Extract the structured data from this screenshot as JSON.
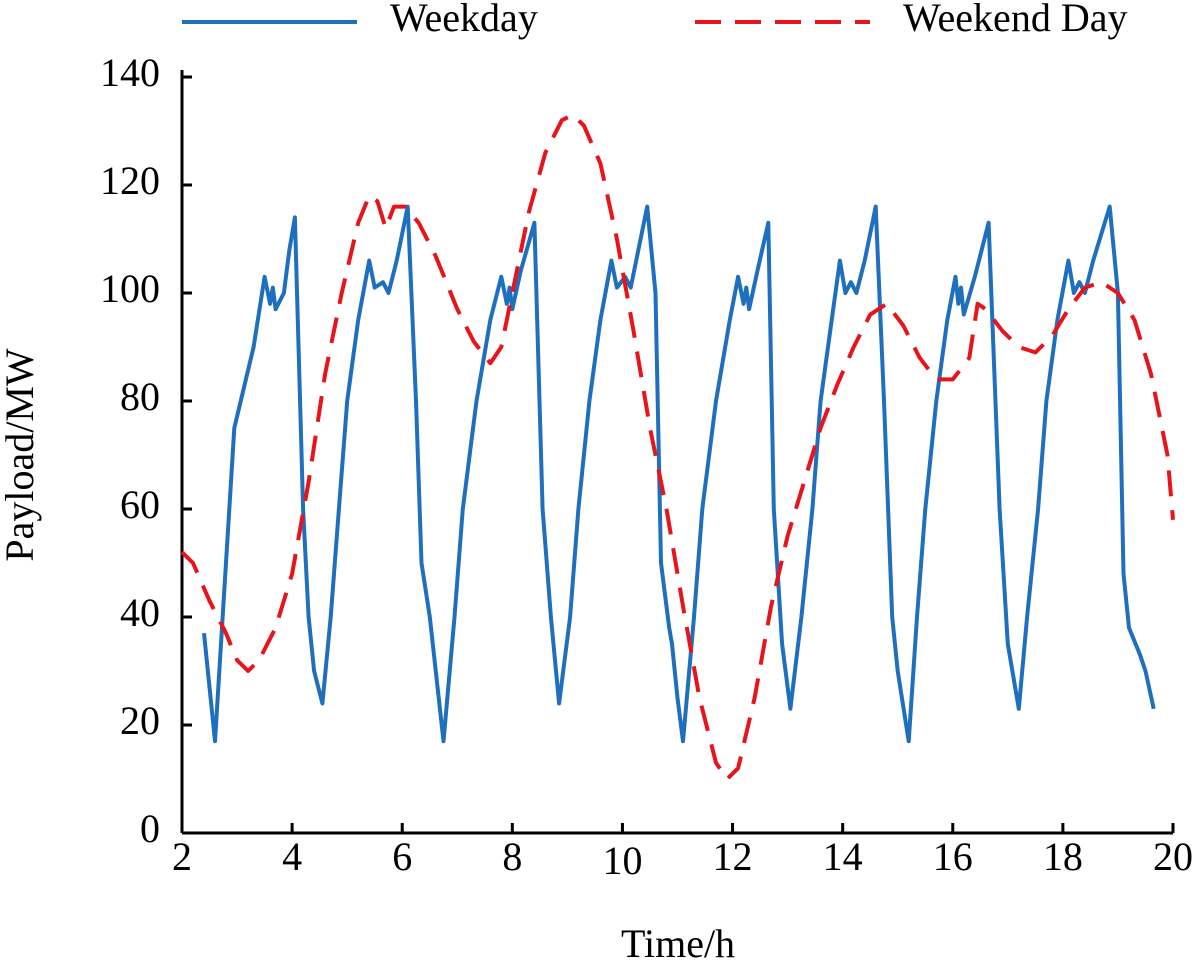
{
  "chart_data": {
    "type": "line",
    "xlabel": "Time/h",
    "ylabel": "Payload/MW",
    "xlim": [
      2,
      20
    ],
    "xticks": [
      2,
      4,
      6,
      8,
      10,
      12,
      14,
      16,
      18,
      20
    ],
    "ylim": [
      0,
      140
    ],
    "yticks": [
      0,
      20,
      40,
      60,
      80,
      100,
      120,
      140
    ],
    "legend": "top",
    "series": [
      {
        "name": "Weekday",
        "color": "#1f6fbf",
        "style": "solid",
        "x": [
          2.4,
          2.6,
          2.95,
          3.3,
          3.5,
          3.6,
          3.65,
          3.7,
          3.85,
          3.95,
          4.05,
          4.2,
          4.3,
          4.4,
          4.55,
          4.7,
          4.85,
          5.0,
          5.2,
          5.4,
          5.5,
          5.65,
          5.75,
          5.9,
          6.1,
          6.25,
          6.35,
          6.5,
          6.75,
          6.95,
          7.1,
          7.35,
          7.6,
          7.8,
          7.9,
          7.95,
          8.0,
          8.15,
          8.4,
          8.55,
          8.7,
          8.85,
          9.05,
          9.2,
          9.4,
          9.6,
          9.8,
          9.9,
          10.05,
          10.15,
          10.25,
          10.45,
          10.6,
          10.7,
          10.85,
          10.9,
          11.0,
          11.1,
          11.3,
          11.45,
          11.7,
          11.95,
          12.1,
          12.2,
          12.25,
          12.3,
          12.45,
          12.65,
          12.75,
          12.9,
          13.05,
          13.25,
          13.45,
          13.6,
          13.8,
          13.95,
          14.05,
          14.15,
          14.25,
          14.4,
          14.6,
          14.75,
          14.9,
          15.0,
          15.2,
          15.35,
          15.5,
          15.7,
          15.9,
          16.05,
          16.1,
          16.15,
          16.2,
          16.4,
          16.65,
          16.85,
          17.0,
          17.2,
          17.35,
          17.55,
          17.7,
          17.9,
          18.1,
          18.2,
          18.3,
          18.4,
          18.55,
          18.85,
          19.0,
          19.1,
          19.2,
          19.4,
          19.5,
          19.65
        ],
        "values": [
          37,
          17,
          75,
          90,
          103,
          98,
          101,
          97,
          100,
          108,
          114,
          60,
          40,
          30,
          24,
          40,
          60,
          80,
          95,
          106,
          101,
          102,
          100,
          106,
          116,
          80,
          50,
          40,
          17,
          40,
          60,
          80,
          95,
          103,
          98,
          101,
          97,
          104,
          113,
          60,
          40,
          24,
          40,
          60,
          80,
          95,
          106,
          101,
          103,
          101,
          106,
          116,
          100,
          50,
          38,
          35,
          25,
          17,
          40,
          60,
          80,
          95,
          103,
          98,
          101,
          97,
          104,
          113,
          60,
          35,
          23,
          40,
          60,
          80,
          95,
          106,
          100,
          102,
          100,
          106,
          116,
          80,
          40,
          30,
          17,
          40,
          60,
          80,
          95,
          103,
          98,
          101,
          96,
          103,
          113,
          60,
          35,
          23,
          40,
          60,
          80,
          95,
          106,
          100,
          102,
          100,
          106,
          116,
          100,
          48,
          38,
          33,
          30,
          23
        ]
      },
      {
        "name": "Weekend Day",
        "color": "#e8141c",
        "style": "dashed",
        "x": [
          2.0,
          2.2,
          2.5,
          2.8,
          3.0,
          3.2,
          3.4,
          3.7,
          4.0,
          4.3,
          4.6,
          4.9,
          5.2,
          5.4,
          5.55,
          5.7,
          5.85,
          6.05,
          6.3,
          6.6,
          7.0,
          7.3,
          7.6,
          7.8,
          8.0,
          8.3,
          8.6,
          8.9,
          9.1,
          9.3,
          9.6,
          9.9,
          10.2,
          10.5,
          10.8,
          11.1,
          11.4,
          11.7,
          11.9,
          12.1,
          12.4,
          12.7,
          13.0,
          13.3,
          13.6,
          13.9,
          14.2,
          14.5,
          14.8,
          15.1,
          15.4,
          15.7,
          16.0,
          16.3,
          16.45,
          16.6,
          16.9,
          17.2,
          17.5,
          17.8,
          18.1,
          18.4,
          18.7,
          19.0,
          19.3,
          19.6,
          19.9,
          20.0
        ],
        "values": [
          52,
          50,
          43,
          37,
          32,
          30,
          32,
          38,
          48,
          65,
          85,
          100,
          113,
          118,
          117,
          112,
          116,
          116,
          113,
          107,
          97,
          91,
          87,
          90,
          100,
          115,
          126,
          132,
          133,
          131,
          124,
          110,
          93,
          75,
          60,
          42,
          25,
          13,
          10,
          12,
          25,
          42,
          55,
          65,
          75,
          83,
          90,
          96,
          98,
          94,
          88,
          84,
          84,
          88,
          98,
          97,
          93,
          90,
          89,
          92,
          97,
          101,
          102,
          100,
          95,
          85,
          70,
          58
        ]
      }
    ]
  }
}
